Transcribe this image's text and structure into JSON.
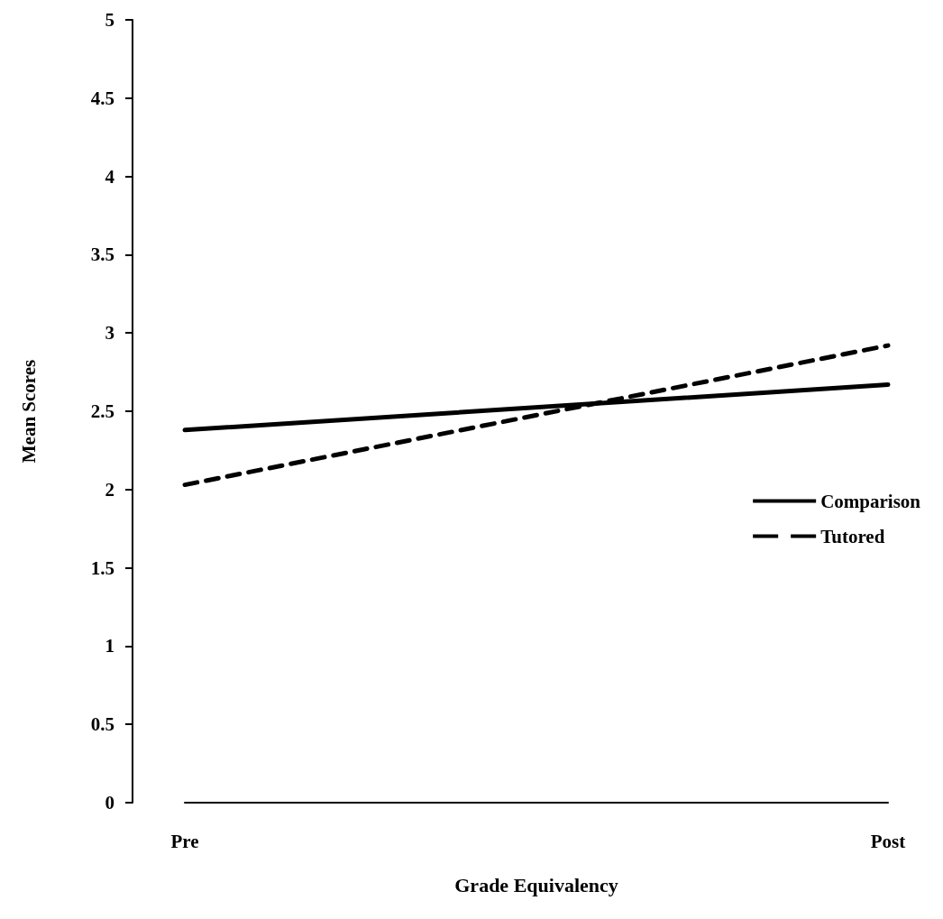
{
  "chart_data": {
    "type": "line",
    "xlabel": "Grade Equivalency",
    "ylabel": "Mean Scores",
    "categories": [
      "Pre",
      "Post"
    ],
    "ylim": [
      0,
      5
    ],
    "yticks": [
      0,
      0.5,
      1,
      1.5,
      2,
      2.5,
      3,
      3.5,
      4,
      4.5,
      5
    ],
    "grid": false,
    "legend": "right",
    "marker": "none",
    "series": [
      {
        "name": "Comparison",
        "color": "#000000",
        "line_style": "solid",
        "values": [
          2.38,
          2.67
        ]
      },
      {
        "name": "Tutored",
        "color": "#000000",
        "line_style": "dashed",
        "values": [
          2.03,
          2.92
        ]
      }
    ]
  }
}
